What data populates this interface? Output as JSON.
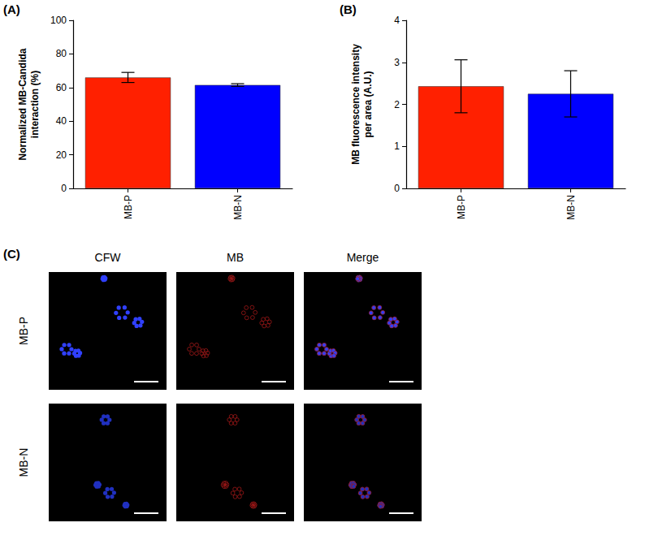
{
  "chart_data": [
    {
      "panel": "(A)",
      "type": "bar",
      "y_label": "Normalized MB-Candida interaction (%)",
      "categories": [
        "MB-P",
        "MB-N"
      ],
      "values": [
        66,
        61.5
      ],
      "errors": [
        3,
        0.8
      ],
      "colors": [
        "#ff2000",
        "#0000ff"
      ],
      "ylim": [
        0,
        100
      ],
      "yticks": [
        0,
        20,
        40,
        60,
        80,
        100
      ],
      "grid": false
    },
    {
      "panel": "(B)",
      "type": "bar",
      "y_label": "MB fluorescence intensity per area (A.U.)",
      "categories": [
        "MB-P",
        "MB-N"
      ],
      "values": [
        2.43,
        2.25
      ],
      "errors": [
        0.63,
        0.55
      ],
      "colors": [
        "#ff2000",
        "#0000ff"
      ],
      "ylim": [
        0,
        4
      ],
      "yticks": [
        0,
        1,
        2,
        3,
        4
      ],
      "grid": false
    }
  ],
  "panel_c": {
    "label": "(C)",
    "columns": [
      "CFW",
      "MB",
      "Merge"
    ],
    "rows": [
      "MB-P",
      "MB-N"
    ]
  }
}
